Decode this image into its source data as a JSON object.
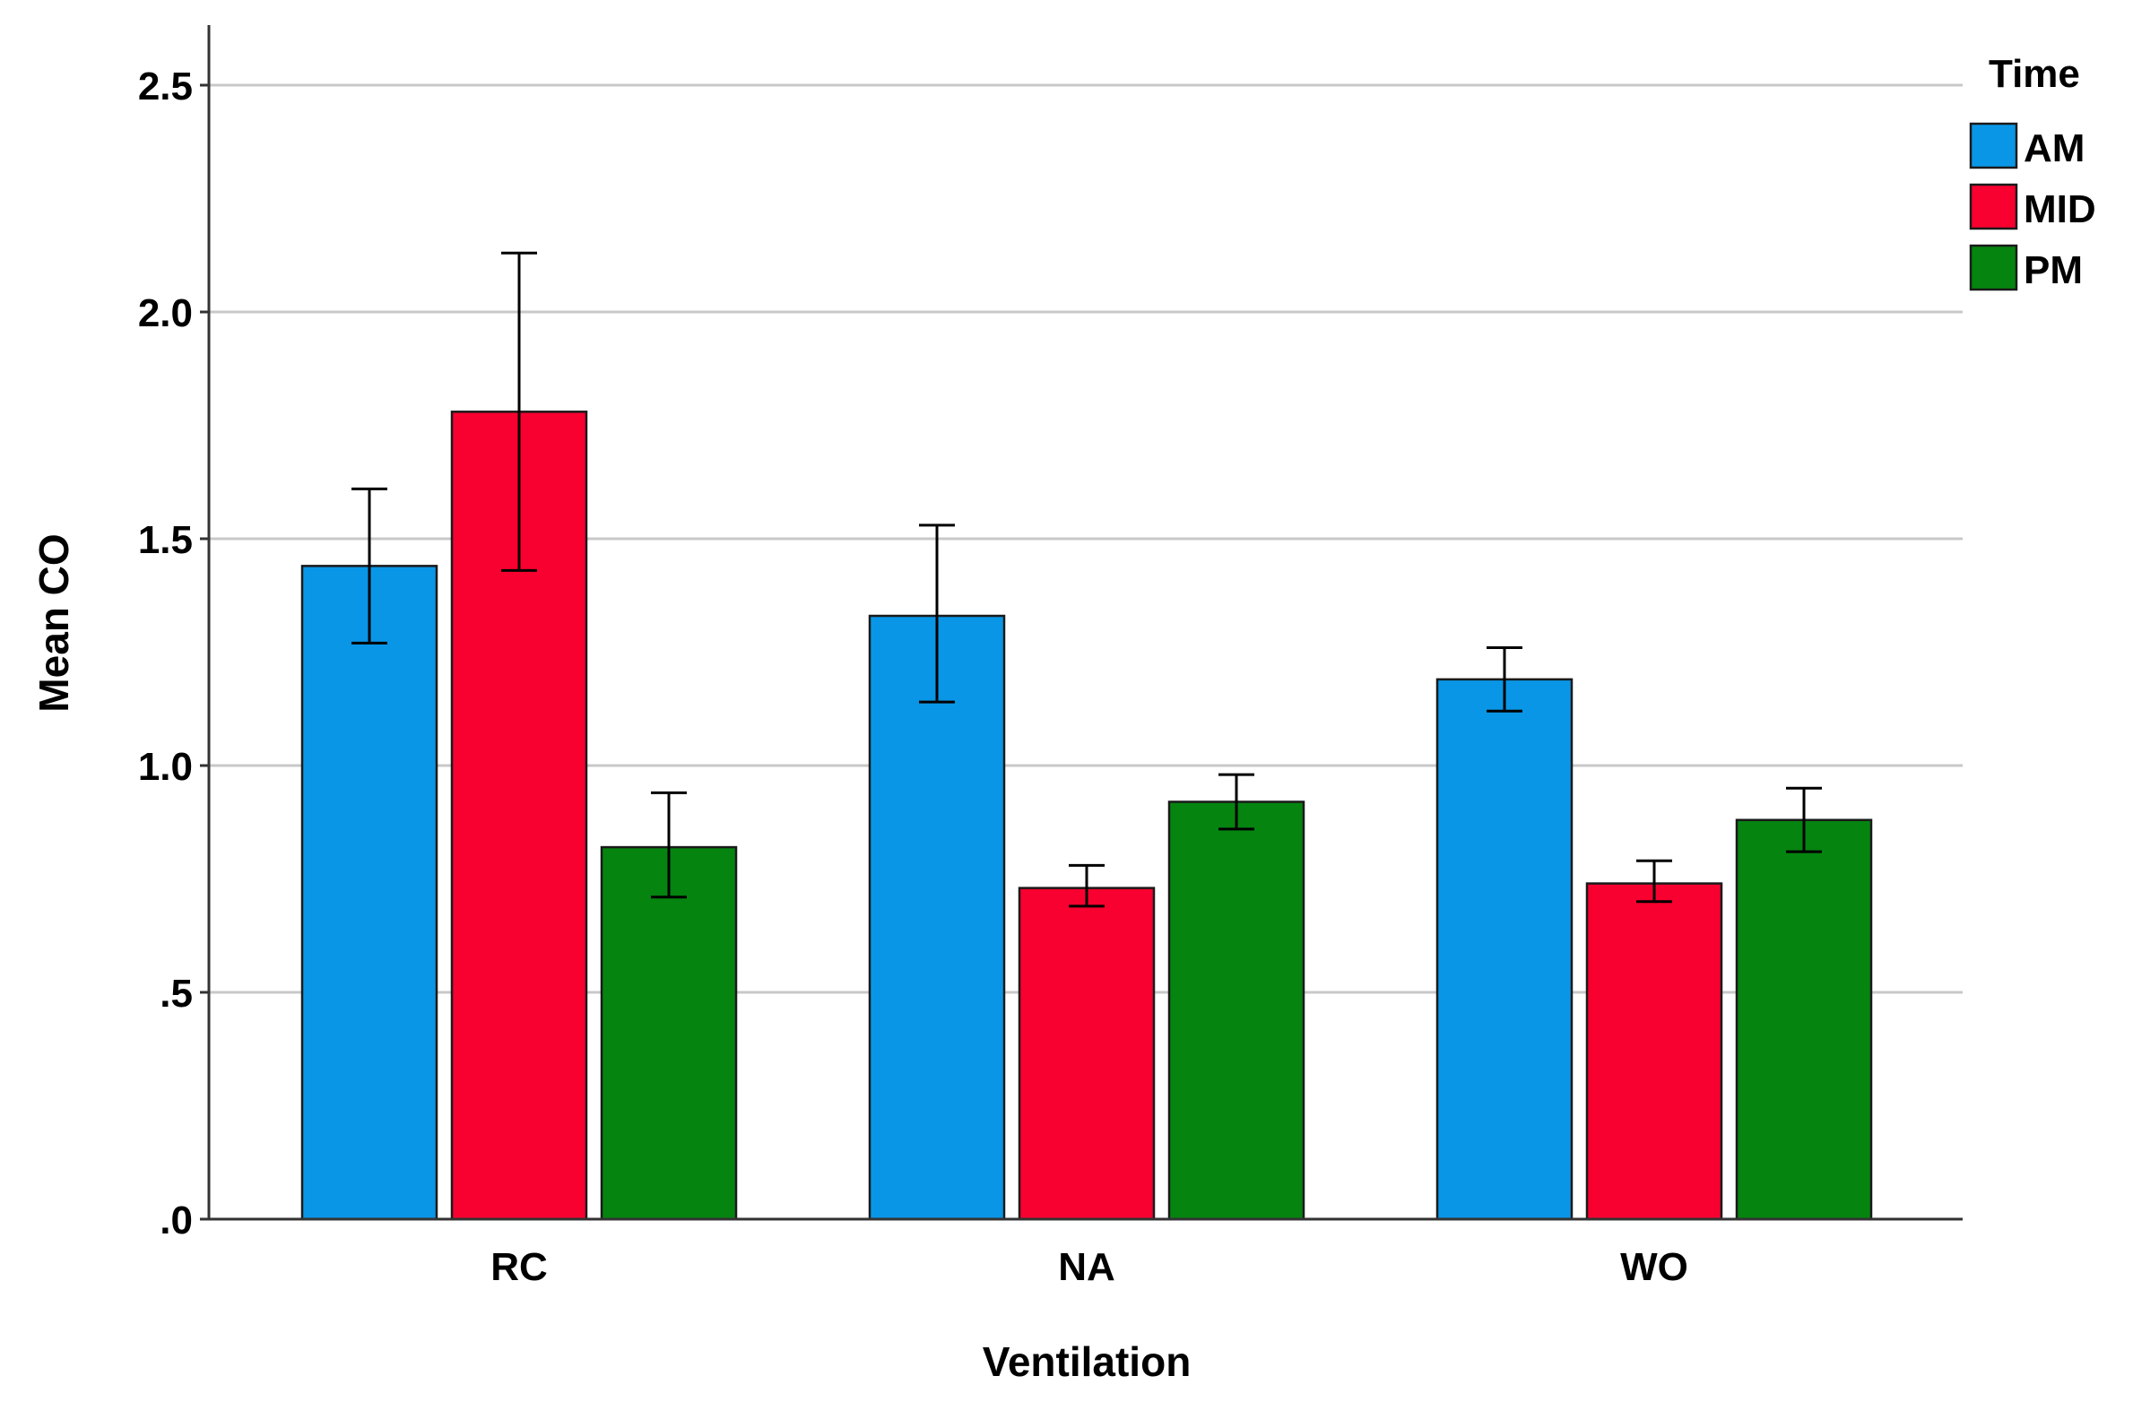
{
  "chart_data": {
    "type": "bar",
    "title": "",
    "xlabel": "Ventilation",
    "ylabel": "Mean CO",
    "ylim": [
      0,
      2.65
    ],
    "yticks": [
      0,
      0.5,
      1.0,
      1.5,
      2.0,
      2.5
    ],
    "ytick_labels": [
      ".0",
      ".5",
      "1.0",
      "1.5",
      "2.0",
      "2.5"
    ],
    "grid": true,
    "categories": [
      "RC",
      "NA",
      "WO"
    ],
    "legend": {
      "title": "Time",
      "placement": "top-right"
    },
    "series": [
      {
        "name": "AM",
        "color": "#0A96E6",
        "values": [
          1.44,
          1.33,
          1.19
        ],
        "error_low": [
          1.27,
          1.14,
          1.12
        ],
        "error_high": [
          1.61,
          1.53,
          1.26
        ]
      },
      {
        "name": "MID",
        "color": "#F8002F",
        "values": [
          1.78,
          0.73,
          0.74
        ],
        "error_low": [
          1.43,
          0.69,
          0.7
        ],
        "error_high": [
          2.13,
          0.78,
          0.79
        ]
      },
      {
        "name": "PM",
        "color": "#058410",
        "values": [
          0.82,
          0.92,
          0.88
        ],
        "error_low": [
          0.71,
          0.86,
          0.81
        ],
        "error_high": [
          0.94,
          0.98,
          0.95
        ]
      }
    ]
  }
}
